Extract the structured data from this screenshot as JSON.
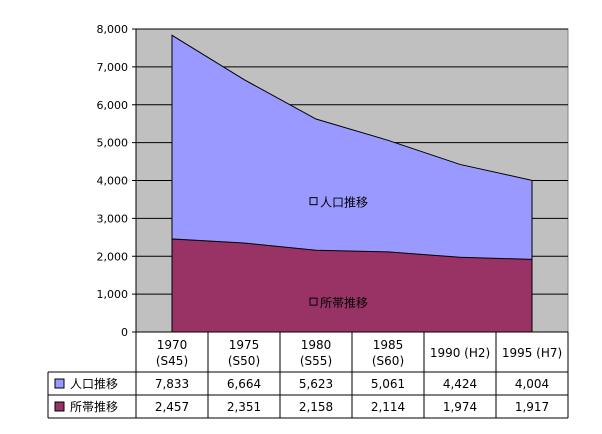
{
  "chart_data": {
    "type": "area",
    "categories": [
      [
        "1970",
        "(S45)"
      ],
      [
        "1975",
        "(S50)"
      ],
      [
        "1980",
        "(S55)"
      ],
      [
        "1985",
        "(S60)"
      ],
      [
        "1990 (H2)"
      ],
      [
        "1995 (H7)"
      ]
    ],
    "ylim": [
      0,
      8000
    ],
    "yticks": [
      0,
      1000,
      2000,
      3000,
      4000,
      5000,
      6000,
      7000,
      8000
    ],
    "ytick_labels": [
      "0",
      "1,000",
      "2,000",
      "3,000",
      "4,000",
      "5,000",
      "6,000",
      "7,000",
      "8,000"
    ],
    "grid": true,
    "series": [
      {
        "name": "人口推移",
        "color": "#9999ff",
        "values": [
          7833,
          6664,
          5623,
          5061,
          4424,
          4004
        ],
        "value_labels": [
          "7,833",
          "6,664",
          "5,623",
          "5,061",
          "4,424",
          "4,004"
        ],
        "in_plot_label": "人口推移"
      },
      {
        "name": "所帯推移",
        "color": "#993366",
        "values": [
          2457,
          2351,
          2158,
          2114,
          1974,
          1917
        ],
        "value_labels": [
          "2,457",
          "2,351",
          "2,158",
          "2,114",
          "1,974",
          "1,917"
        ],
        "in_plot_label": "所帯推移"
      }
    ],
    "plot_background": "#c0c0c0"
  }
}
